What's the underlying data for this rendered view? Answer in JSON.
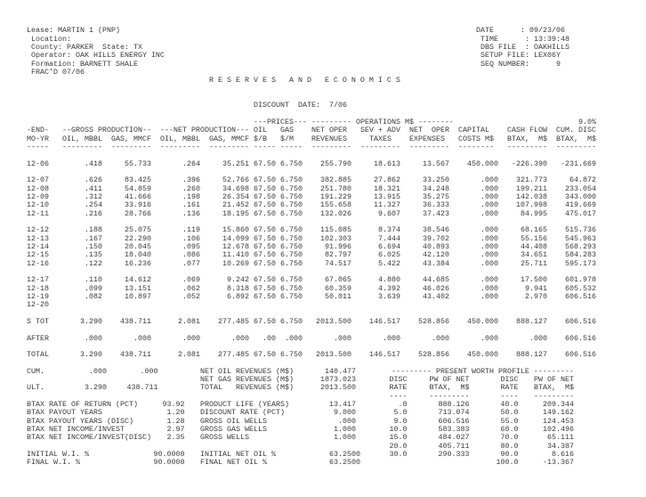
{
  "header": {
    "lease": "Lease: MARTIN 1 (PNP)",
    "location": "Location:",
    "county": "County: PARKER",
    "state": "State: TX",
    "operator": "Operator: OAK HILLS ENERGY INC",
    "formation": "Formation: BARNETT SHALE",
    "note": "FRAC'D 07/06",
    "info": [
      {
        "label": "DATE",
        "value": "09/23/06"
      },
      {
        "label": "TIME",
        "value": "13:39:48"
      },
      {
        "label": "DBS FILE",
        "value": "OAKHILLS"
      },
      {
        "label": "SETUP FILE",
        "value": "LEX06Y"
      },
      {
        "label": "SEQ NUMBER",
        "value": "9"
      }
    ],
    "colon": ":",
    "title": "R E S E R V E S   A N D   E C O N O M I C S",
    "discount_date_label": "DISCOUNT  DATE:",
    "discount_date": "7/06"
  },
  "table": {
    "group_gross": "--GROSS PRODUCTION--",
    "group_net": "---NET PRODUCTION---",
    "prices_header": "---PRICES---",
    "operations_header": "--------- OPERATIONS M$ --------",
    "disc_pct": "9.0%",
    "columns": [
      {
        "l1": "-END-",
        "l2": "MO-YR",
        "dash": "-----"
      },
      {
        "l1": "",
        "l2": "OIL, MBBL",
        "dash": "---------"
      },
      {
        "l1": "",
        "l2": "GAS, MMCF",
        "dash": "---------"
      },
      {
        "l1": "",
        "l2": "OIL, MBBL",
        "dash": "---------"
      },
      {
        "l1": "",
        "l2": "GAS, MMCF",
        "dash": "---------"
      },
      {
        "l1": "OIL",
        "l2": "$/B",
        "dash": "-----"
      },
      {
        "l1": "GAS",
        "l2": "$/M",
        "dash": "-----"
      },
      {
        "l1": "NET OPER",
        "l2": "REVENUES",
        "dash": "---------"
      },
      {
        "l1": "SEV + ADV",
        "l2": "TAXES",
        "dash": "---------"
      },
      {
        "l1": "NET  OPER",
        "l2": "EXPENSES",
        "dash": "---------"
      },
      {
        "l1": "CAPITAL",
        "l2": "COSTS M$",
        "dash": "--------"
      },
      {
        "l1": "CASH FLOW",
        "l2": "BTAX,  M$",
        "dash": "---------"
      },
      {
        "l1": "CUM. DISC",
        "l2": "BTAX,  M$",
        "dash": "---------"
      }
    ],
    "rows": [
      [
        "12-06",
        ".418",
        "55.733",
        ".264",
        "35.251",
        "67.50",
        "6.750",
        "255.790",
        "18.613",
        "13.567",
        "450.000",
        "-226.390",
        "-231.669"
      ],
      [
        "12-07",
        ".626",
        "83.425",
        ".396",
        "52.766",
        "67.50",
        "6.750",
        "382.885",
        "27.862",
        "33.250",
        ".000",
        "321.773",
        "64.872"
      ],
      [
        "12-08",
        ".411",
        "54.859",
        ".260",
        "34.698",
        "67.50",
        "6.750",
        "251.780",
        "18.321",
        "34.248",
        ".000",
        "199.211",
        "233.054"
      ],
      [
        "12-09",
        ".312",
        "41.666",
        ".198",
        "26.354",
        "67.50",
        "6.750",
        "191.229",
        "13.915",
        "35.275",
        ".000",
        "142.038",
        "343.000"
      ],
      [
        "12-10",
        ".254",
        "33.916",
        ".161",
        "21.452",
        "67.50",
        "6.750",
        "155.658",
        "11.327",
        "36.333",
        ".000",
        "107.998",
        "419.669"
      ],
      [
        "12-11",
        ".216",
        "28.766",
        ".136",
        "18.195",
        "67.50",
        "6.750",
        "132.026",
        "9.607",
        "37.423",
        ".000",
        "84.995",
        "475.017"
      ],
      [
        "12-12",
        ".188",
        "25.075",
        ".119",
        "15.860",
        "67.50",
        "6.750",
        "115.085",
        "8.374",
        "38.546",
        ".000",
        "68.165",
        "515.736"
      ],
      [
        "12-13",
        ".167",
        "22.290",
        ".106",
        "14.099",
        "67.50",
        "6.750",
        "102.303",
        "7.444",
        "39.702",
        ".000",
        "55.156",
        "545.963"
      ],
      [
        "12-14",
        ".150",
        "20.045",
        ".095",
        "12.678",
        "67.50",
        "6.750",
        "91.996",
        "6.694",
        "40.893",
        ".000",
        "44.408",
        "568.293"
      ],
      [
        "12-15",
        ".135",
        "18.040",
        ".086",
        "11.410",
        "67.50",
        "6.750",
        "82.797",
        "6.025",
        "42.120",
        ".000",
        "34.651",
        "584.283"
      ],
      [
        "12-16",
        ".122",
        "16.236",
        ".077",
        "10.269",
        "67.50",
        "6.750",
        "74.517",
        "5.422",
        "43.384",
        ".000",
        "25.711",
        "595.173"
      ],
      [
        "12-17",
        ".110",
        "14.612",
        ".069",
        "9.242",
        "67.50",
        "6.750",
        "67.065",
        "4.880",
        "44.685",
        ".000",
        "17.500",
        "601.978"
      ],
      [
        "12-18",
        ".099",
        "13.151",
        ".062",
        "8.318",
        "67.50",
        "6.750",
        "60.359",
        "4.392",
        "46.026",
        ".000",
        "9.941",
        "605.532"
      ],
      [
        "12-19",
        ".082",
        "10.897",
        ".052",
        "6.892",
        "67.50",
        "6.750",
        "50.011",
        "3.639",
        "43.402",
        ".000",
        "2.970",
        "606.516"
      ],
      [
        "12-20"
      ]
    ],
    "totals": [
      [
        "S TOT",
        "3.290",
        "438.711",
        "2.081",
        "277.485",
        "67.50",
        "6.750",
        "2013.500",
        "146.517",
        "528.856",
        "450.000",
        "888.127",
        "606.516"
      ],
      [
        "AFTER",
        ".000",
        ".000",
        ".000",
        ".000",
        ".00",
        ".000",
        ".000",
        ".000",
        ".000",
        ".000",
        ".000",
        "606.516"
      ],
      [
        "TOTAL",
        "3.290",
        "438.711",
        "2.081",
        "277.485",
        "67.50",
        "6.750",
        "2013.500",
        "146.517",
        "528.856",
        "450.000",
        "888.127",
        "606.516"
      ]
    ]
  },
  "summary": {
    "cum": [
      "CUM.",
      ".000",
      ".000"
    ],
    "ult": [
      "ULT.",
      "3.290",
      "438.711"
    ],
    "revenues": [
      {
        "label": "NET OIL REVENUES (M$)",
        "value": "140.477"
      },
      {
        "label": "NET GAS REVENUES (M$)",
        "value": "1873.023"
      },
      {
        "label": "TOTAL   REVENUES (M$)",
        "value": "2013.500"
      }
    ],
    "left_stats": [
      {
        "label": "BTAX RATE OF RETURN (PCT)",
        "value": "93.92"
      },
      {
        "label": "BTAX PAYOUT YEARS",
        "value": "1.20"
      },
      {
        "label": "BTAX PAYOUT YEARS (DISC)",
        "value": "1.28"
      },
      {
        "label": "BTAX NET INCOME/INVEST",
        "value": "2.97"
      },
      {
        "label": "BTAX NET INCOME/INVEST(DISC)",
        "value": "2.35"
      }
    ],
    "left_interest": [
      {
        "label": "INITIAL W.I. %",
        "value": "90.0000"
      },
      {
        "label": "FINAL W.I. %",
        "value": "90.0000"
      }
    ],
    "mid_stats": [
      {
        "label": "PRODUCT LIFE (YEARS)",
        "value": "13.417"
      },
      {
        "label": "DISCOUNT RATE (PCT)",
        "value": "9.000"
      },
      {
        "label": "GROSS OIL WELLS",
        "value": ".000"
      },
      {
        "label": "GROSS GAS WELLS",
        "value": "1.000"
      },
      {
        "label": "GROSS WELLS",
        "value": "1.000"
      }
    ],
    "mid_interest": [
      {
        "label": "INITIAL NET OIL %",
        "value": "63.2500"
      },
      {
        "label": "FINAL NET OIL %",
        "value": "63.2500"
      }
    ]
  },
  "pw_profile": {
    "title": "--------- PRESENT WORTH PROFILE ---------",
    "h1": [
      "DISC",
      "PW OF NET",
      "DISC",
      "PW OF NET"
    ],
    "h2": [
      "RATE",
      "BTAX,  M$",
      "RATE",
      "BTAX,  M$"
    ],
    "dash": [
      "----",
      "---------",
      "----",
      "---------"
    ],
    "left": [
      [
        ".0",
        "888.126"
      ],
      [
        "5.0",
        "713.074"
      ],
      [
        "9.0",
        "606.516"
      ],
      [
        "10.0",
        "583.383"
      ],
      [
        "15.0",
        "484.027"
      ],
      [
        "20.0",
        "405.711"
      ],
      [
        "30.0",
        "290.333"
      ]
    ],
    "right": [
      [
        "40.0",
        "209.344"
      ],
      [
        "50.0",
        "149.162"
      ],
      [
        "55.0",
        "124.453"
      ],
      [
        "60.0",
        "102.496"
      ],
      [
        "70.0",
        "65.111"
      ],
      [
        "80.0",
        "34.387"
      ],
      [
        "90.0",
        "8.616"
      ],
      [
        "100.0",
        "-13.367"
      ]
    ]
  }
}
